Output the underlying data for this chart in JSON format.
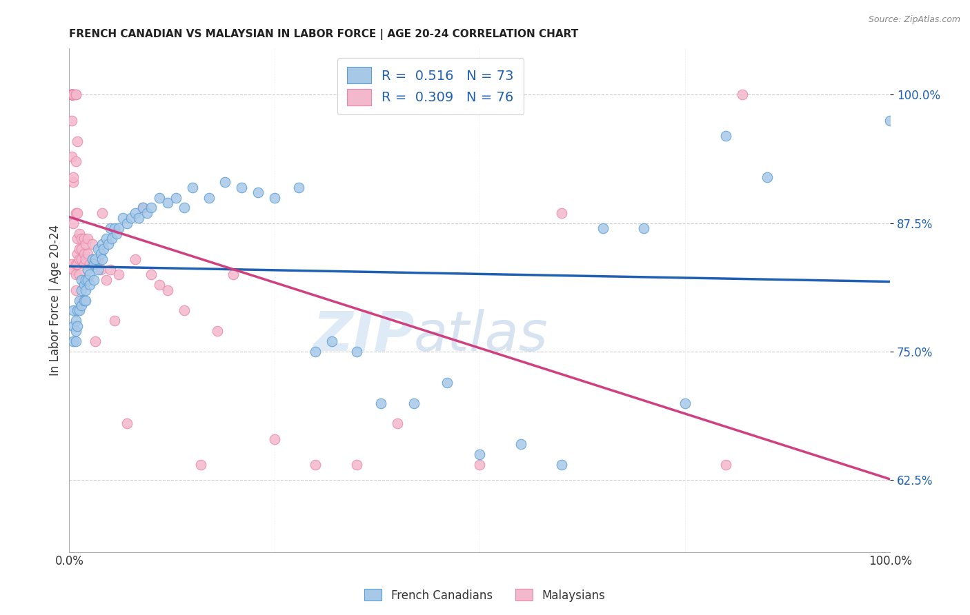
{
  "title": "FRENCH CANADIAN VS MALAYSIAN IN LABOR FORCE | AGE 20-24 CORRELATION CHART",
  "source": "Source: ZipAtlas.com",
  "ylabel": "In Labor Force | Age 20-24",
  "yticks": [
    0.625,
    0.75,
    0.875,
    1.0
  ],
  "ytick_labels": [
    "62.5%",
    "75.0%",
    "87.5%",
    "100.0%"
  ],
  "xlim": [
    0.0,
    1.0
  ],
  "ylim": [
    0.555,
    1.045
  ],
  "legend_labels": [
    "French Canadians",
    "Malaysians"
  ],
  "blue_R": 0.516,
  "blue_N": 73,
  "pink_R": 0.309,
  "pink_N": 76,
  "blue_color": "#a8c8e8",
  "pink_color": "#f4b8cc",
  "blue_edge_color": "#5a9fd4",
  "pink_edge_color": "#e888a8",
  "blue_line_color": "#2060b0",
  "pink_line_color": "#d04080",
  "watermark_zip": "ZIP",
  "watermark_atlas": "atlas",
  "blue_x": [
    0.005,
    0.005,
    0.005,
    0.008,
    0.008,
    0.008,
    0.01,
    0.01,
    0.012,
    0.012,
    0.015,
    0.015,
    0.015,
    0.018,
    0.018,
    0.02,
    0.02,
    0.02,
    0.022,
    0.022,
    0.025,
    0.025,
    0.028,
    0.03,
    0.03,
    0.032,
    0.035,
    0.035,
    0.038,
    0.04,
    0.04,
    0.042,
    0.045,
    0.048,
    0.05,
    0.052,
    0.055,
    0.058,
    0.06,
    0.065,
    0.07,
    0.075,
    0.08,
    0.085,
    0.09,
    0.095,
    0.1,
    0.11,
    0.12,
    0.13,
    0.14,
    0.15,
    0.17,
    0.19,
    0.21,
    0.23,
    0.25,
    0.28,
    0.3,
    0.32,
    0.35,
    0.38,
    0.42,
    0.46,
    0.5,
    0.55,
    0.6,
    0.65,
    0.7,
    0.75,
    0.8,
    0.85,
    1.0
  ],
  "blue_y": [
    0.76,
    0.775,
    0.79,
    0.77,
    0.78,
    0.76,
    0.775,
    0.79,
    0.79,
    0.8,
    0.795,
    0.81,
    0.82,
    0.8,
    0.815,
    0.81,
    0.82,
    0.8,
    0.82,
    0.83,
    0.825,
    0.815,
    0.84,
    0.835,
    0.82,
    0.84,
    0.85,
    0.83,
    0.845,
    0.855,
    0.84,
    0.85,
    0.86,
    0.855,
    0.87,
    0.86,
    0.87,
    0.865,
    0.87,
    0.88,
    0.875,
    0.88,
    0.885,
    0.88,
    0.89,
    0.885,
    0.89,
    0.9,
    0.895,
    0.9,
    0.89,
    0.91,
    0.9,
    0.915,
    0.91,
    0.905,
    0.9,
    0.91,
    0.75,
    0.76,
    0.75,
    0.7,
    0.7,
    0.72,
    0.65,
    0.66,
    0.64,
    0.87,
    0.87,
    0.7,
    0.96,
    0.92,
    0.975
  ],
  "pink_x": [
    0.003,
    0.003,
    0.003,
    0.003,
    0.003,
    0.003,
    0.003,
    0.003,
    0.003,
    0.003,
    0.003,
    0.003,
    0.005,
    0.005,
    0.005,
    0.005,
    0.005,
    0.005,
    0.005,
    0.005,
    0.008,
    0.008,
    0.008,
    0.008,
    0.008,
    0.008,
    0.008,
    0.01,
    0.01,
    0.01,
    0.01,
    0.01,
    0.012,
    0.012,
    0.012,
    0.012,
    0.015,
    0.015,
    0.015,
    0.015,
    0.018,
    0.018,
    0.018,
    0.02,
    0.02,
    0.022,
    0.022,
    0.025,
    0.028,
    0.03,
    0.032,
    0.035,
    0.038,
    0.04,
    0.045,
    0.05,
    0.055,
    0.06,
    0.07,
    0.08,
    0.09,
    0.1,
    0.11,
    0.12,
    0.14,
    0.16,
    0.18,
    0.2,
    0.25,
    0.3,
    0.35,
    0.4,
    0.5,
    0.6,
    0.8,
    0.82
  ],
  "pink_y": [
    1.0,
    1.0,
    1.0,
    1.0,
    1.0,
    1.0,
    1.0,
    1.0,
    1.0,
    0.975,
    0.835,
    0.94,
    1.0,
    1.0,
    1.0,
    1.0,
    0.915,
    0.875,
    0.83,
    0.92,
    1.0,
    1.0,
    0.935,
    0.885,
    0.835,
    0.825,
    0.81,
    0.955,
    0.885,
    0.86,
    0.845,
    0.835,
    0.865,
    0.85,
    0.84,
    0.825,
    0.86,
    0.85,
    0.84,
    0.8,
    0.86,
    0.845,
    0.835,
    0.855,
    0.84,
    0.86,
    0.845,
    0.835,
    0.855,
    0.835,
    0.76,
    0.84,
    0.83,
    0.885,
    0.82,
    0.83,
    0.78,
    0.825,
    0.68,
    0.84,
    0.89,
    0.825,
    0.815,
    0.81,
    0.79,
    0.64,
    0.77,
    0.825,
    0.665,
    0.64,
    0.64,
    0.68,
    0.64,
    0.885,
    0.64,
    1.0
  ]
}
